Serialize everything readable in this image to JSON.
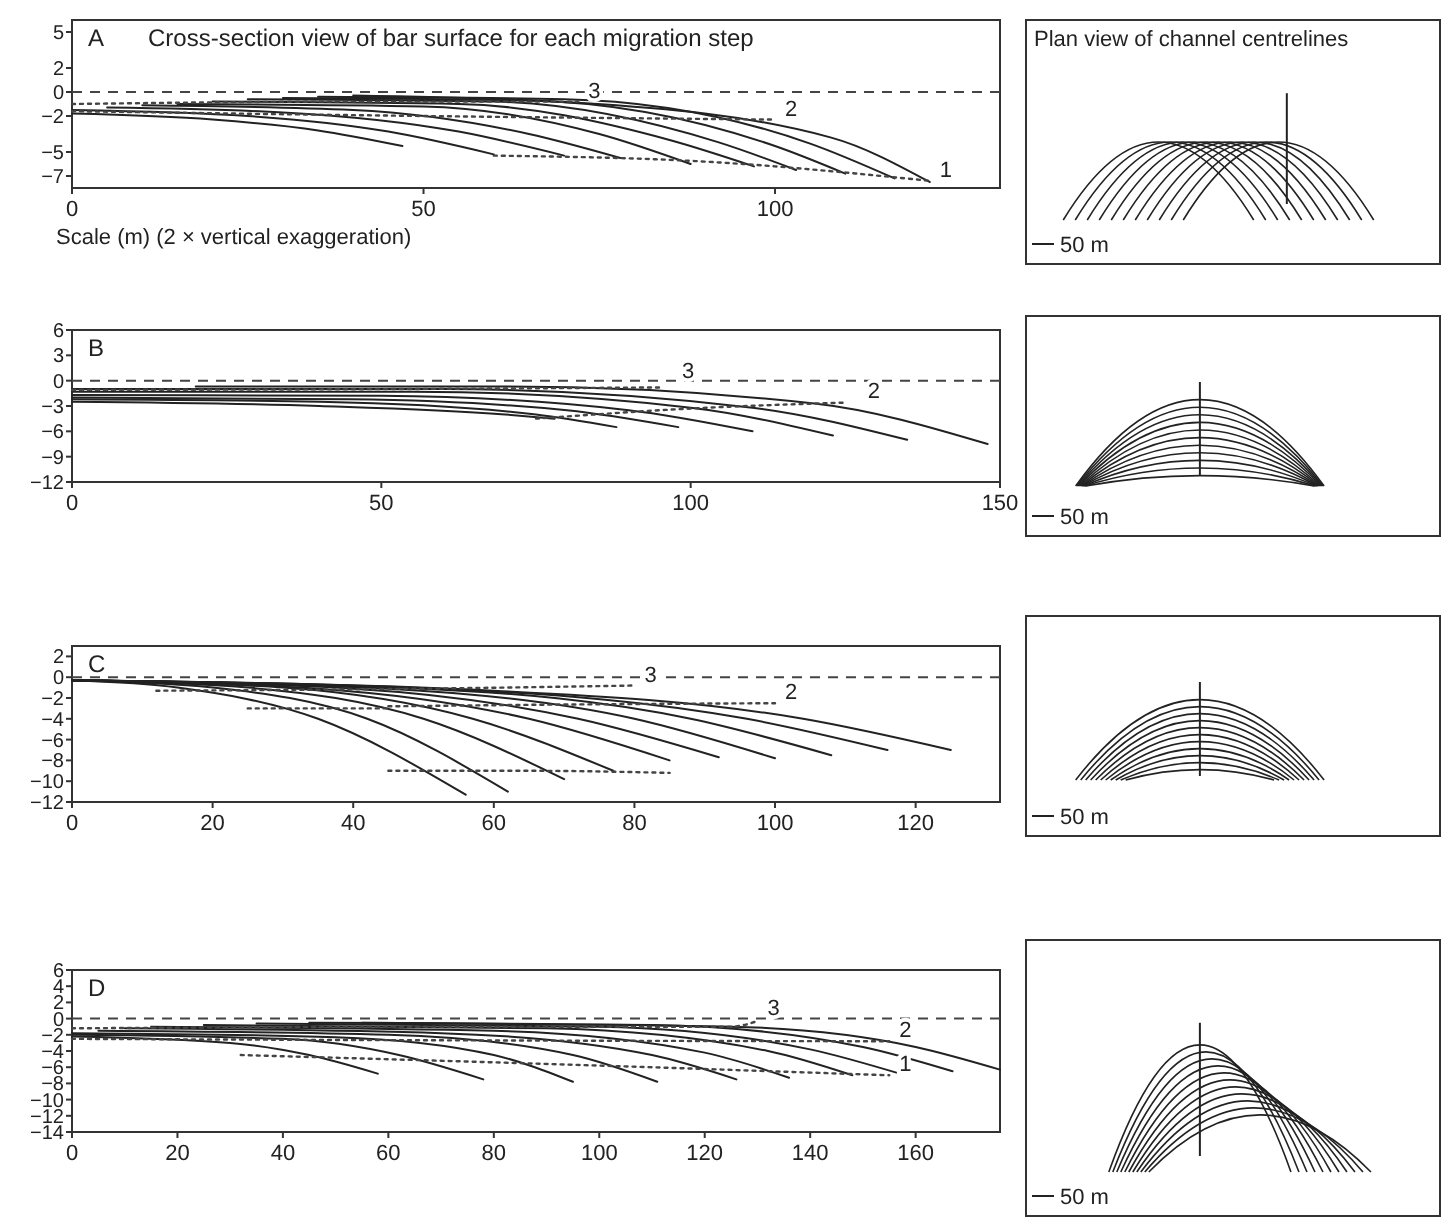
{
  "chart_data": [
    {
      "type": "line",
      "title": "Cross-section view of bar surface for each migration step",
      "xlabel": "Scale (m) (2 × vertical exaggeration)",
      "xlim": [
        0,
        132
      ],
      "ylim": [
        -8,
        6
      ],
      "xticks": [
        0,
        50,
        100
      ],
      "yticks": [
        5,
        2,
        0,
        -2,
        -5,
        -7
      ],
      "ref_lines": [
        {
          "axis": "y",
          "value": 0,
          "line_style": "dashed"
        }
      ],
      "annotations": [
        "A",
        {
          "text": "3",
          "x": 72,
          "y": -0.8
        },
        {
          "text": "2",
          "x": 100,
          "y": -2.3
        },
        {
          "text": "1",
          "x": 122,
          "y": -7.4
        }
      ],
      "series": [
        {
          "color": "#222222",
          "x": [
            0,
            20,
            35,
            47
          ],
          "values": [
            -1.8,
            -2.3,
            -3.2,
            -4.5
          ]
        },
        {
          "color": "#222222",
          "x": [
            0,
            25,
            45,
            60
          ],
          "values": [
            -1.5,
            -2,
            -3.3,
            -5.2
          ]
        },
        {
          "color": "#222222",
          "x": [
            5,
            30,
            55,
            70
          ],
          "values": [
            -1.3,
            -1.7,
            -3.3,
            -5.3
          ]
        },
        {
          "color": "#222222",
          "x": [
            10,
            40,
            65,
            78
          ],
          "values": [
            -1.1,
            -1.5,
            -3.5,
            -5.5
          ]
        },
        {
          "color": "#222222",
          "x": [
            15,
            50,
            75,
            88
          ],
          "values": [
            -1,
            -1.2,
            -3.5,
            -6
          ]
        },
        {
          "color": "#222222",
          "x": [
            20,
            55,
            85,
            97
          ],
          "values": [
            -0.8,
            -1,
            -4,
            -6.2
          ]
        },
        {
          "color": "#222222",
          "x": [
            25,
            60,
            92,
            103
          ],
          "values": [
            -0.6,
            -0.8,
            -4.2,
            -6.5
          ]
        },
        {
          "color": "#222222",
          "x": [
            30,
            65,
            100,
            110
          ],
          "values": [
            -0.5,
            -0.7,
            -4.5,
            -6.8
          ]
        },
        {
          "color": "#222222",
          "x": [
            35,
            70,
            105,
            117
          ],
          "values": [
            -0.4,
            -0.6,
            -4.3,
            -7.2
          ]
        },
        {
          "color": "#222222",
          "x": [
            40,
            72,
            108,
            122
          ],
          "values": [
            -0.3,
            -0.9,
            -3.8,
            -7.5
          ]
        },
        {
          "color": "#444444",
          "line_style": "dotted",
          "x": [
            0,
            40,
            72
          ],
          "values": [
            -1,
            -0.8,
            -0.8
          ]
        },
        {
          "color": "#444444",
          "line_style": "dotted",
          "x": [
            0,
            50,
            100
          ],
          "values": [
            -1.6,
            -2,
            -2.3
          ]
        },
        {
          "color": "#444444",
          "line_style": "dotted",
          "x": [
            60,
            90,
            122
          ],
          "values": [
            -5.3,
            -5.8,
            -7.4
          ]
        }
      ]
    },
    {
      "type": "other",
      "title": "Plan view of channel centrelines",
      "annotations": [
        "50 m"
      ]
    },
    {
      "type": "line",
      "xlim": [
        0,
        150
      ],
      "ylim": [
        -12,
        6
      ],
      "xticks": [
        0,
        50,
        100,
        150
      ],
      "yticks": [
        6,
        3,
        0,
        -3,
        -6,
        -9,
        -12
      ],
      "ref_lines": [
        {
          "axis": "y",
          "value": 0,
          "line_style": "dashed"
        }
      ],
      "annotations": [
        "B",
        {
          "text": "3",
          "x": 97,
          "y": -0.1
        },
        {
          "text": "2",
          "x": 127,
          "y": -2.5
        }
      ],
      "series": [
        {
          "color": "#222222",
          "x": [
            0,
            40,
            70,
            78
          ],
          "values": [
            -2.5,
            -3,
            -4,
            -4.5
          ]
        },
        {
          "color": "#222222",
          "x": [
            0,
            40,
            75,
            88
          ],
          "values": [
            -2.2,
            -2.5,
            -4,
            -5.5
          ]
        },
        {
          "color": "#222222",
          "x": [
            0,
            45,
            80,
            98
          ],
          "values": [
            -2,
            -2.2,
            -3.5,
            -5.5
          ]
        },
        {
          "color": "#222222",
          "x": [
            0,
            50,
            90,
            110
          ],
          "values": [
            -1.7,
            -1.8,
            -3.5,
            -6
          ]
        },
        {
          "color": "#222222",
          "x": [
            0,
            55,
            100,
            123
          ],
          "values": [
            -1.3,
            -1.3,
            -3.2,
            -6.5
          ]
        },
        {
          "color": "#222222",
          "x": [
            0,
            60,
            110,
            135
          ],
          "values": [
            -1,
            -1,
            -3.2,
            -7
          ]
        },
        {
          "color": "#222222",
          "x": [
            20,
            70,
            120,
            148
          ],
          "values": [
            -0.7,
            -0.7,
            -2.7,
            -7.5
          ]
        },
        {
          "color": "#444444",
          "line_style": "dotted",
          "x": [
            0,
            50,
            95
          ],
          "values": [
            -1.1,
            -1,
            -0.8
          ]
        },
        {
          "color": "#444444",
          "line_style": "dotted",
          "x": [
            75,
            100,
            125
          ],
          "values": [
            -4.5,
            -3.3,
            -2.6
          ]
        }
      ]
    },
    {
      "type": "other",
      "annotations": [
        "50 m"
      ]
    },
    {
      "type": "line",
      "xlim": [
        0,
        132
      ],
      "ylim": [
        -12,
        3
      ],
      "xticks": [
        0,
        20,
        40,
        60,
        80,
        100,
        120
      ],
      "yticks": [
        2,
        0,
        -2,
        -4,
        -6,
        -8,
        -10,
        -12
      ],
      "ref_lines": [
        {
          "axis": "y",
          "value": 0,
          "line_style": "dashed"
        }
      ],
      "annotations": [
        "C",
        {
          "text": "3",
          "x": 80,
          "y": -0.8
        },
        {
          "text": "2",
          "x": 100,
          "y": -2.5
        }
      ],
      "series": [
        {
          "color": "#222222",
          "x": [
            0,
            15,
            35,
            56
          ],
          "values": [
            -0.3,
            -1,
            -4,
            -11.3
          ]
        },
        {
          "color": "#222222",
          "x": [
            0,
            20,
            42,
            62
          ],
          "values": [
            -0.3,
            -1,
            -4,
            -11
          ]
        },
        {
          "color": "#222222",
          "x": [
            0,
            25,
            50,
            70
          ],
          "values": [
            -0.3,
            -1,
            -4,
            -9.8
          ]
        },
        {
          "color": "#222222",
          "x": [
            0,
            30,
            57,
            77
          ],
          "values": [
            -0.3,
            -1,
            -4,
            -9
          ]
        },
        {
          "color": "#222222",
          "x": [
            0,
            35,
            65,
            85
          ],
          "values": [
            -0.3,
            -1.1,
            -4,
            -8
          ]
        },
        {
          "color": "#222222",
          "x": [
            0,
            40,
            72,
            92
          ],
          "values": [
            -0.3,
            -1.1,
            -4,
            -7.7
          ]
        },
        {
          "color": "#222222",
          "x": [
            0,
            45,
            80,
            100
          ],
          "values": [
            -0.3,
            -1.1,
            -4,
            -7.8
          ]
        },
        {
          "color": "#222222",
          "x": [
            0,
            50,
            88,
            108
          ],
          "values": [
            -0.3,
            -1.1,
            -4,
            -7.5
          ]
        },
        {
          "color": "#222222",
          "x": [
            0,
            55,
            96,
            116
          ],
          "values": [
            -0.3,
            -1.2,
            -4,
            -7
          ]
        },
        {
          "color": "#222222",
          "x": [
            0,
            60,
            104,
            125
          ],
          "values": [
            -0.3,
            -1.3,
            -4,
            -7
          ]
        },
        {
          "color": "#444444",
          "line_style": "dotted",
          "x": [
            12,
            50,
            80
          ],
          "values": [
            -1.3,
            -1.1,
            -0.8
          ]
        },
        {
          "color": "#444444",
          "line_style": "dotted",
          "x": [
            45,
            75,
            100
          ],
          "values": [
            -2.8,
            -2.6,
            -2.5
          ]
        },
        {
          "color": "#444444",
          "line_style": "dotted",
          "x": [
            25,
            35,
            45
          ],
          "values": [
            -3,
            -3,
            -3
          ]
        },
        {
          "color": "#444444",
          "line_style": "dotted",
          "x": [
            45,
            65,
            85
          ],
          "values": [
            -9,
            -9,
            -9.2
          ]
        }
      ]
    },
    {
      "type": "other",
      "annotations": [
        "50 m"
      ]
    },
    {
      "type": "line",
      "xlim": [
        0,
        176
      ],
      "ylim": [
        -14,
        6
      ],
      "xticks": [
        0,
        20,
        40,
        60,
        80,
        100,
        120,
        140,
        160
      ],
      "yticks": [
        6,
        4,
        2,
        0,
        -2,
        -4,
        -6,
        -8,
        -10,
        -12,
        -14
      ],
      "ref_lines": [
        {
          "axis": "y",
          "value": 0,
          "line_style": "dashed"
        }
      ],
      "annotations": [
        "D",
        {
          "text": "3",
          "x": 130,
          "y": 0
        },
        {
          "text": "2",
          "x": 155,
          "y": -2.8
        },
        {
          "text": "1",
          "x": 155,
          "y": -7
        }
      ],
      "series": [
        {
          "color": "#222222",
          "x": [
            0,
            30,
            45,
            58
          ],
          "values": [
            -2.2,
            -3,
            -4.5,
            -6.8
          ]
        },
        {
          "color": "#222222",
          "x": [
            0,
            40,
            62,
            78
          ],
          "values": [
            -2,
            -2.5,
            -4.5,
            -7.5
          ]
        },
        {
          "color": "#222222",
          "x": [
            0,
            50,
            80,
            95
          ],
          "values": [
            -1.8,
            -2.3,
            -4.5,
            -7.8
          ]
        },
        {
          "color": "#222222",
          "x": [
            5,
            60,
            95,
            111
          ],
          "values": [
            -1.5,
            -2,
            -4.5,
            -7.8
          ]
        },
        {
          "color": "#222222",
          "x": [
            10,
            70,
            110,
            126
          ],
          "values": [
            -1.2,
            -1.8,
            -4.5,
            -7.5
          ]
        },
        {
          "color": "#222222",
          "x": [
            15,
            80,
            120,
            136
          ],
          "values": [
            -1,
            -1.5,
            -4.2,
            -7.3
          ]
        },
        {
          "color": "#222222",
          "x": [
            25,
            90,
            132,
            148
          ],
          "values": [
            -0.8,
            -1.2,
            -4,
            -7
          ]
        },
        {
          "color": "#222222",
          "x": [
            35,
            100,
            140,
            157
          ],
          "values": [
            -0.6,
            -1,
            -3.8,
            -6.8
          ]
        },
        {
          "color": "#222222",
          "x": [
            45,
            110,
            150,
            167
          ],
          "values": [
            -0.5,
            -0.8,
            -3.5,
            -6.5
          ]
        },
        {
          "color": "#222222",
          "x": [
            55,
            125,
            160,
            176
          ],
          "values": [
            -0.5,
            -1,
            -3.5,
            -6.3
          ]
        },
        {
          "color": "#444444",
          "line_style": "dotted",
          "x": [
            0,
            70,
            125,
            130
          ],
          "values": [
            -1.2,
            -1,
            -1,
            -0.3
          ]
        },
        {
          "color": "#444444",
          "line_style": "dotted",
          "x": [
            0,
            80,
            155
          ],
          "values": [
            -2.5,
            -2.7,
            -2.8
          ]
        },
        {
          "color": "#444444",
          "line_style": "dotted",
          "x": [
            32,
            100,
            155
          ],
          "values": [
            -4.5,
            -5.8,
            -7
          ]
        }
      ]
    },
    {
      "type": "other",
      "annotations": [
        "50 m"
      ]
    }
  ]
}
